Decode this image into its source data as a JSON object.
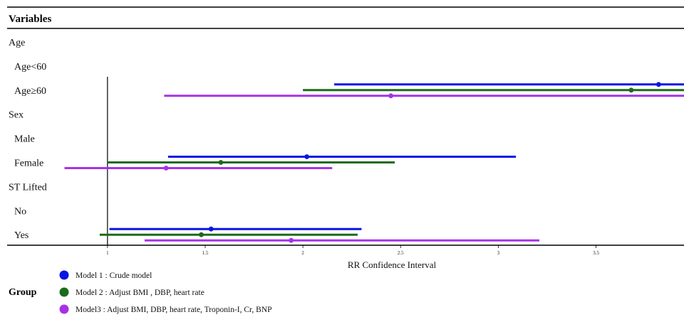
{
  "chart_data": {
    "type": "forest",
    "header": "Variables",
    "xlabel": "RR Confidence Interval",
    "xlim": [
      0.45,
      3.95
    ],
    "xticks": [
      1,
      1.5,
      2,
      2.5,
      3,
      3.5
    ],
    "reference_line": 1,
    "rows": [
      {
        "label": "Age",
        "indent": 0
      },
      {
        "label": "Age<60",
        "indent": 1
      },
      {
        "label": "Age≥60",
        "indent": 1,
        "estimates": [
          {
            "series": 0,
            "point": 3.82,
            "lower": 2.16,
            "upper": 3.95
          },
          {
            "series": 1,
            "point": 3.68,
            "lower": 2.0,
            "upper": 3.95
          },
          {
            "series": 2,
            "point": 2.45,
            "lower": 1.29,
            "upper": 3.95
          }
        ]
      },
      {
        "label": "Sex",
        "indent": 0
      },
      {
        "label": "Male",
        "indent": 1
      },
      {
        "label": "Female",
        "indent": 1,
        "estimates": [
          {
            "series": 0,
            "point": 2.02,
            "lower": 1.31,
            "upper": 3.09
          },
          {
            "series": 1,
            "point": 1.58,
            "lower": 1.0,
            "upper": 2.47
          },
          {
            "series": 2,
            "point": 1.3,
            "lower": 0.78,
            "upper": 2.15
          }
        ]
      },
      {
        "label": "ST Lifted",
        "indent": 0
      },
      {
        "label": "No",
        "indent": 1
      },
      {
        "label": "Yes",
        "indent": 1,
        "estimates": [
          {
            "series": 0,
            "point": 1.53,
            "lower": 1.01,
            "upper": 2.3
          },
          {
            "series": 1,
            "point": 1.48,
            "lower": 0.96,
            "upper": 2.28
          },
          {
            "series": 2,
            "point": 1.94,
            "lower": 1.19,
            "upper": 3.21
          }
        ]
      }
    ],
    "legend_title": "Group",
    "series": [
      {
        "name": "Model 1 : Crude model",
        "color": "#0a14e6"
      },
      {
        "name": "Model 2 : Adjust BMI , DBP, heart rate",
        "color": "#1a6b1a"
      },
      {
        "name": "Model3 : Adjust BMI, DBP, heart rate,  Troponin-I, Cr, BNP",
        "color": "#a632e8"
      }
    ]
  }
}
